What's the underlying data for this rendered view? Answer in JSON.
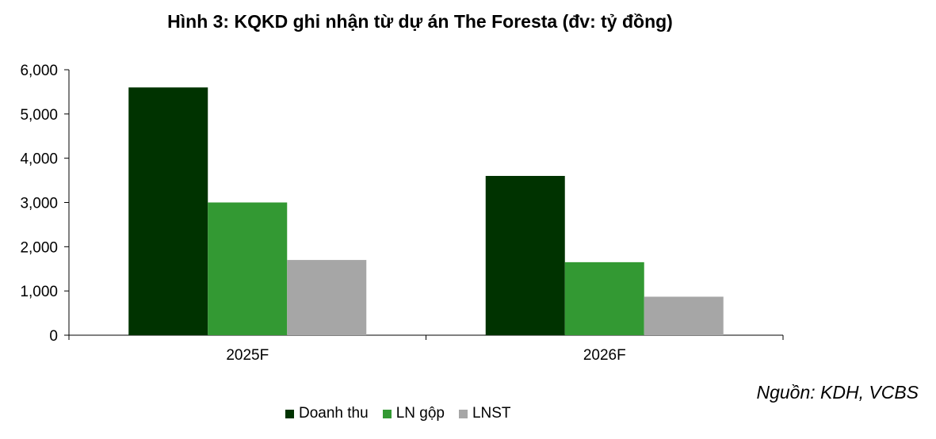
{
  "title": "Hình 3: KQKD ghi nhận từ dự án The Foresta (đv: tỷ đồng)",
  "source": "Nguồn: KDH, VCBS",
  "chart_data": {
    "type": "bar",
    "title": "Hình 3: KQKD ghi nhận từ dự án The Foresta (đv: tỷ đồng)",
    "categories": [
      "2025F",
      "2026F"
    ],
    "series": [
      {
        "name": "Doanh thu",
        "values": [
          5600,
          3600
        ],
        "color": "#003300"
      },
      {
        "name": "LN gộp",
        "values": [
          3000,
          1650
        ],
        "color": "#339933"
      },
      {
        "name": "LNST",
        "values": [
          1700,
          870
        ],
        "color": "#a6a6a6"
      }
    ],
    "ylim": [
      0,
      6000
    ],
    "yticks": [
      0,
      1000,
      2000,
      3000,
      4000,
      5000,
      6000
    ],
    "ytick_labels": [
      "0",
      "1,000",
      "2,000",
      "3,000",
      "4,000",
      "5,000",
      "6,000"
    ],
    "grid": false,
    "legend_position": "bottom"
  }
}
